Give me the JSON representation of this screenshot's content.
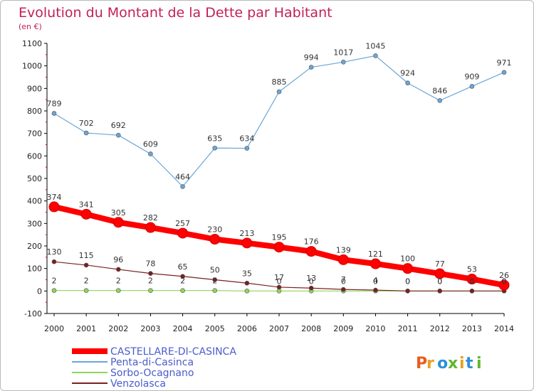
{
  "header": {
    "title": "Evolution du Montant de la Dette par Habitant",
    "unit": "(en €)"
  },
  "brand": {
    "logo_text": "Proxiti",
    "logo_colors": [
      "#e85d1e",
      "#e8a020",
      "#2b90d9",
      "#5cb82e",
      "#e8a020",
      "#2b90d9",
      "#5cb82e"
    ]
  },
  "chart_data": {
    "type": "line",
    "title": "Evolution du Montant de la Dette par Habitant",
    "subtitle": "(en €)",
    "xlabel": "",
    "ylabel": "",
    "x": [
      2000,
      2001,
      2002,
      2003,
      2004,
      2005,
      2006,
      2007,
      2008,
      2009,
      2010,
      2011,
      2012,
      2013,
      2014
    ],
    "ylim": [
      -100,
      1100
    ],
    "ytick_step": 100,
    "grid": false,
    "legend_position": "bottom-left",
    "series": [
      {
        "name": "CASTELLARE-DI-CASINCA",
        "color": "#ff0000",
        "values": [
          374,
          341,
          305,
          282,
          257,
          230,
          213,
          195,
          176,
          139,
          121,
          100,
          77,
          53,
          26
        ],
        "labels": [
          "374",
          "341",
          "305",
          "282",
          "257",
          "230",
          "213",
          "195",
          "176",
          "139",
          "121",
          "100",
          "77",
          "53",
          "26"
        ]
      },
      {
        "name": "Penta-di-Casinca",
        "color": "#6aa6d6",
        "values": [
          789,
          702,
          692,
          609,
          464,
          635,
          634,
          885,
          994,
          1017,
          1045,
          924,
          846,
          909,
          971
        ],
        "labels": [
          "789",
          "702",
          "692",
          "609",
          "464",
          "635",
          "634",
          "885",
          "994",
          "1017",
          "1045",
          "924",
          "846",
          "909",
          "971"
        ]
      },
      {
        "name": "Sorbo-Ocagnano",
        "color": "#8fd45a",
        "values": [
          2,
          2,
          2,
          2,
          2,
          2,
          0,
          0,
          0,
          0,
          0,
          0,
          0,
          0,
          0
        ],
        "labels": [
          "2",
          "2",
          "2",
          "2",
          "2",
          "2",
          "",
          "0",
          "0",
          "0",
          "0",
          "0",
          "0",
          "0",
          "0"
        ]
      },
      {
        "name": "Venzolasca",
        "color": "#7a2020",
        "values": [
          130,
          115,
          96,
          78,
          65,
          50,
          35,
          17,
          13,
          7,
          4,
          0,
          0,
          0,
          0
        ],
        "labels": [
          "130",
          "115",
          "96",
          "78",
          "65",
          "50",
          "35",
          "17",
          "13",
          "7",
          "4",
          "0",
          "0",
          "0",
          "0"
        ]
      }
    ]
  }
}
